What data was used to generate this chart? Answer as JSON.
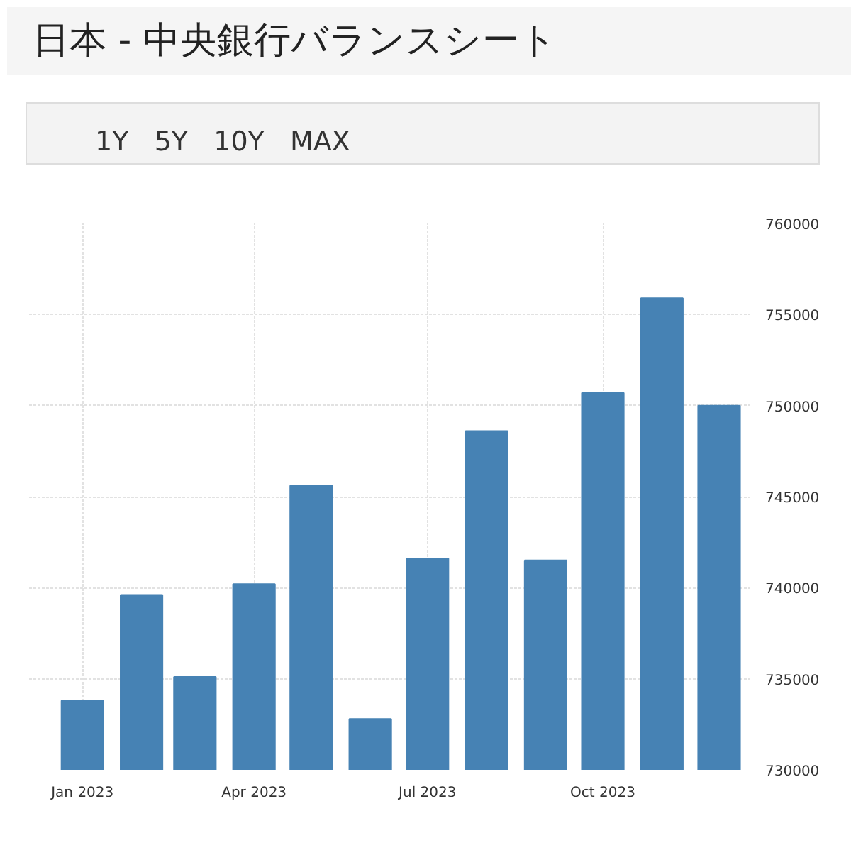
{
  "chart_data": {
    "type": "bar",
    "title": "日本 - 中央銀行バランスシート",
    "annotations": [
      "1Y",
      "5Y",
      "10Y",
      "MAX"
    ],
    "x": [
      "2023-01",
      "2023-02",
      "2023-03",
      "2023-04",
      "2023-05",
      "2023-06",
      "2023-07",
      "2023-08",
      "2023-09",
      "2023-10",
      "2023-11",
      "2023-12"
    ],
    "values": [
      733800,
      739600,
      735100,
      740200,
      745600,
      732800,
      741600,
      748600,
      741500,
      750700,
      755900,
      750000
    ],
    "color": "#4682b4",
    "xlim": [
      "2022-12-04",
      "2023-12-17"
    ],
    "xticks": [
      {
        "value": "2023-01",
        "label": "Jan 2023"
      },
      {
        "value": "2023-04",
        "label": "Apr 2023"
      },
      {
        "value": "2023-07",
        "label": "Jul 2023"
      },
      {
        "value": "2023-10",
        "label": "Oct 2023"
      }
    ],
    "ylim": [
      730000,
      760000
    ],
    "yticks": [
      730000,
      735000,
      740000,
      745000,
      750000,
      755000,
      760000
    ],
    "grid": true
  }
}
